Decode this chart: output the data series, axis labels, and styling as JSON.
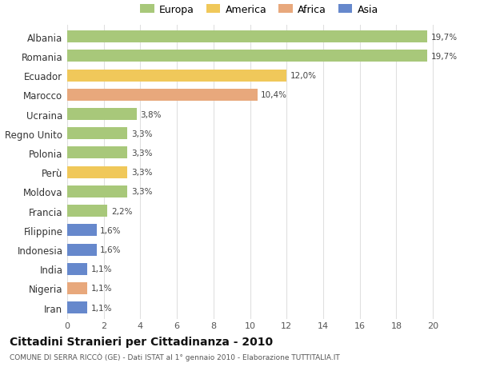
{
  "countries": [
    "Albania",
    "Romania",
    "Ecuador",
    "Marocco",
    "Ucraina",
    "Regno Unito",
    "Polonia",
    "Perù",
    "Moldova",
    "Francia",
    "Filippine",
    "Indonesia",
    "India",
    "Nigeria",
    "Iran"
  ],
  "values": [
    19.7,
    19.7,
    12.0,
    10.4,
    3.8,
    3.3,
    3.3,
    3.3,
    3.3,
    2.2,
    1.6,
    1.6,
    1.1,
    1.1,
    1.1
  ],
  "labels": [
    "19,7%",
    "19,7%",
    "12,0%",
    "10,4%",
    "3,8%",
    "3,3%",
    "3,3%",
    "3,3%",
    "3,3%",
    "2,2%",
    "1,6%",
    "1,6%",
    "1,1%",
    "1,1%",
    "1,1%"
  ],
  "continents": [
    "Europa",
    "Europa",
    "America",
    "Africa",
    "Europa",
    "Europa",
    "Europa",
    "America",
    "Europa",
    "Europa",
    "Asia",
    "Asia",
    "Asia",
    "Africa",
    "Asia"
  ],
  "colors": {
    "Europa": "#a8c87a",
    "America": "#f0c85a",
    "Africa": "#e8a87c",
    "Asia": "#6688cc"
  },
  "xlim": [
    0,
    21
  ],
  "xticks": [
    0,
    2,
    4,
    6,
    8,
    10,
    12,
    14,
    16,
    18,
    20
  ],
  "title": "Cittadini Stranieri per Cittadinanza - 2010",
  "subtitle": "COMUNE DI SERRA RICCÒ (GE) - Dati ISTAT al 1° gennaio 2010 - Elaborazione TUTTITALIA.IT",
  "background_color": "#ffffff",
  "grid_color": "#e0e0e0",
  "bar_height": 0.62,
  "legend_order": [
    "Europa",
    "America",
    "Africa",
    "Asia"
  ]
}
